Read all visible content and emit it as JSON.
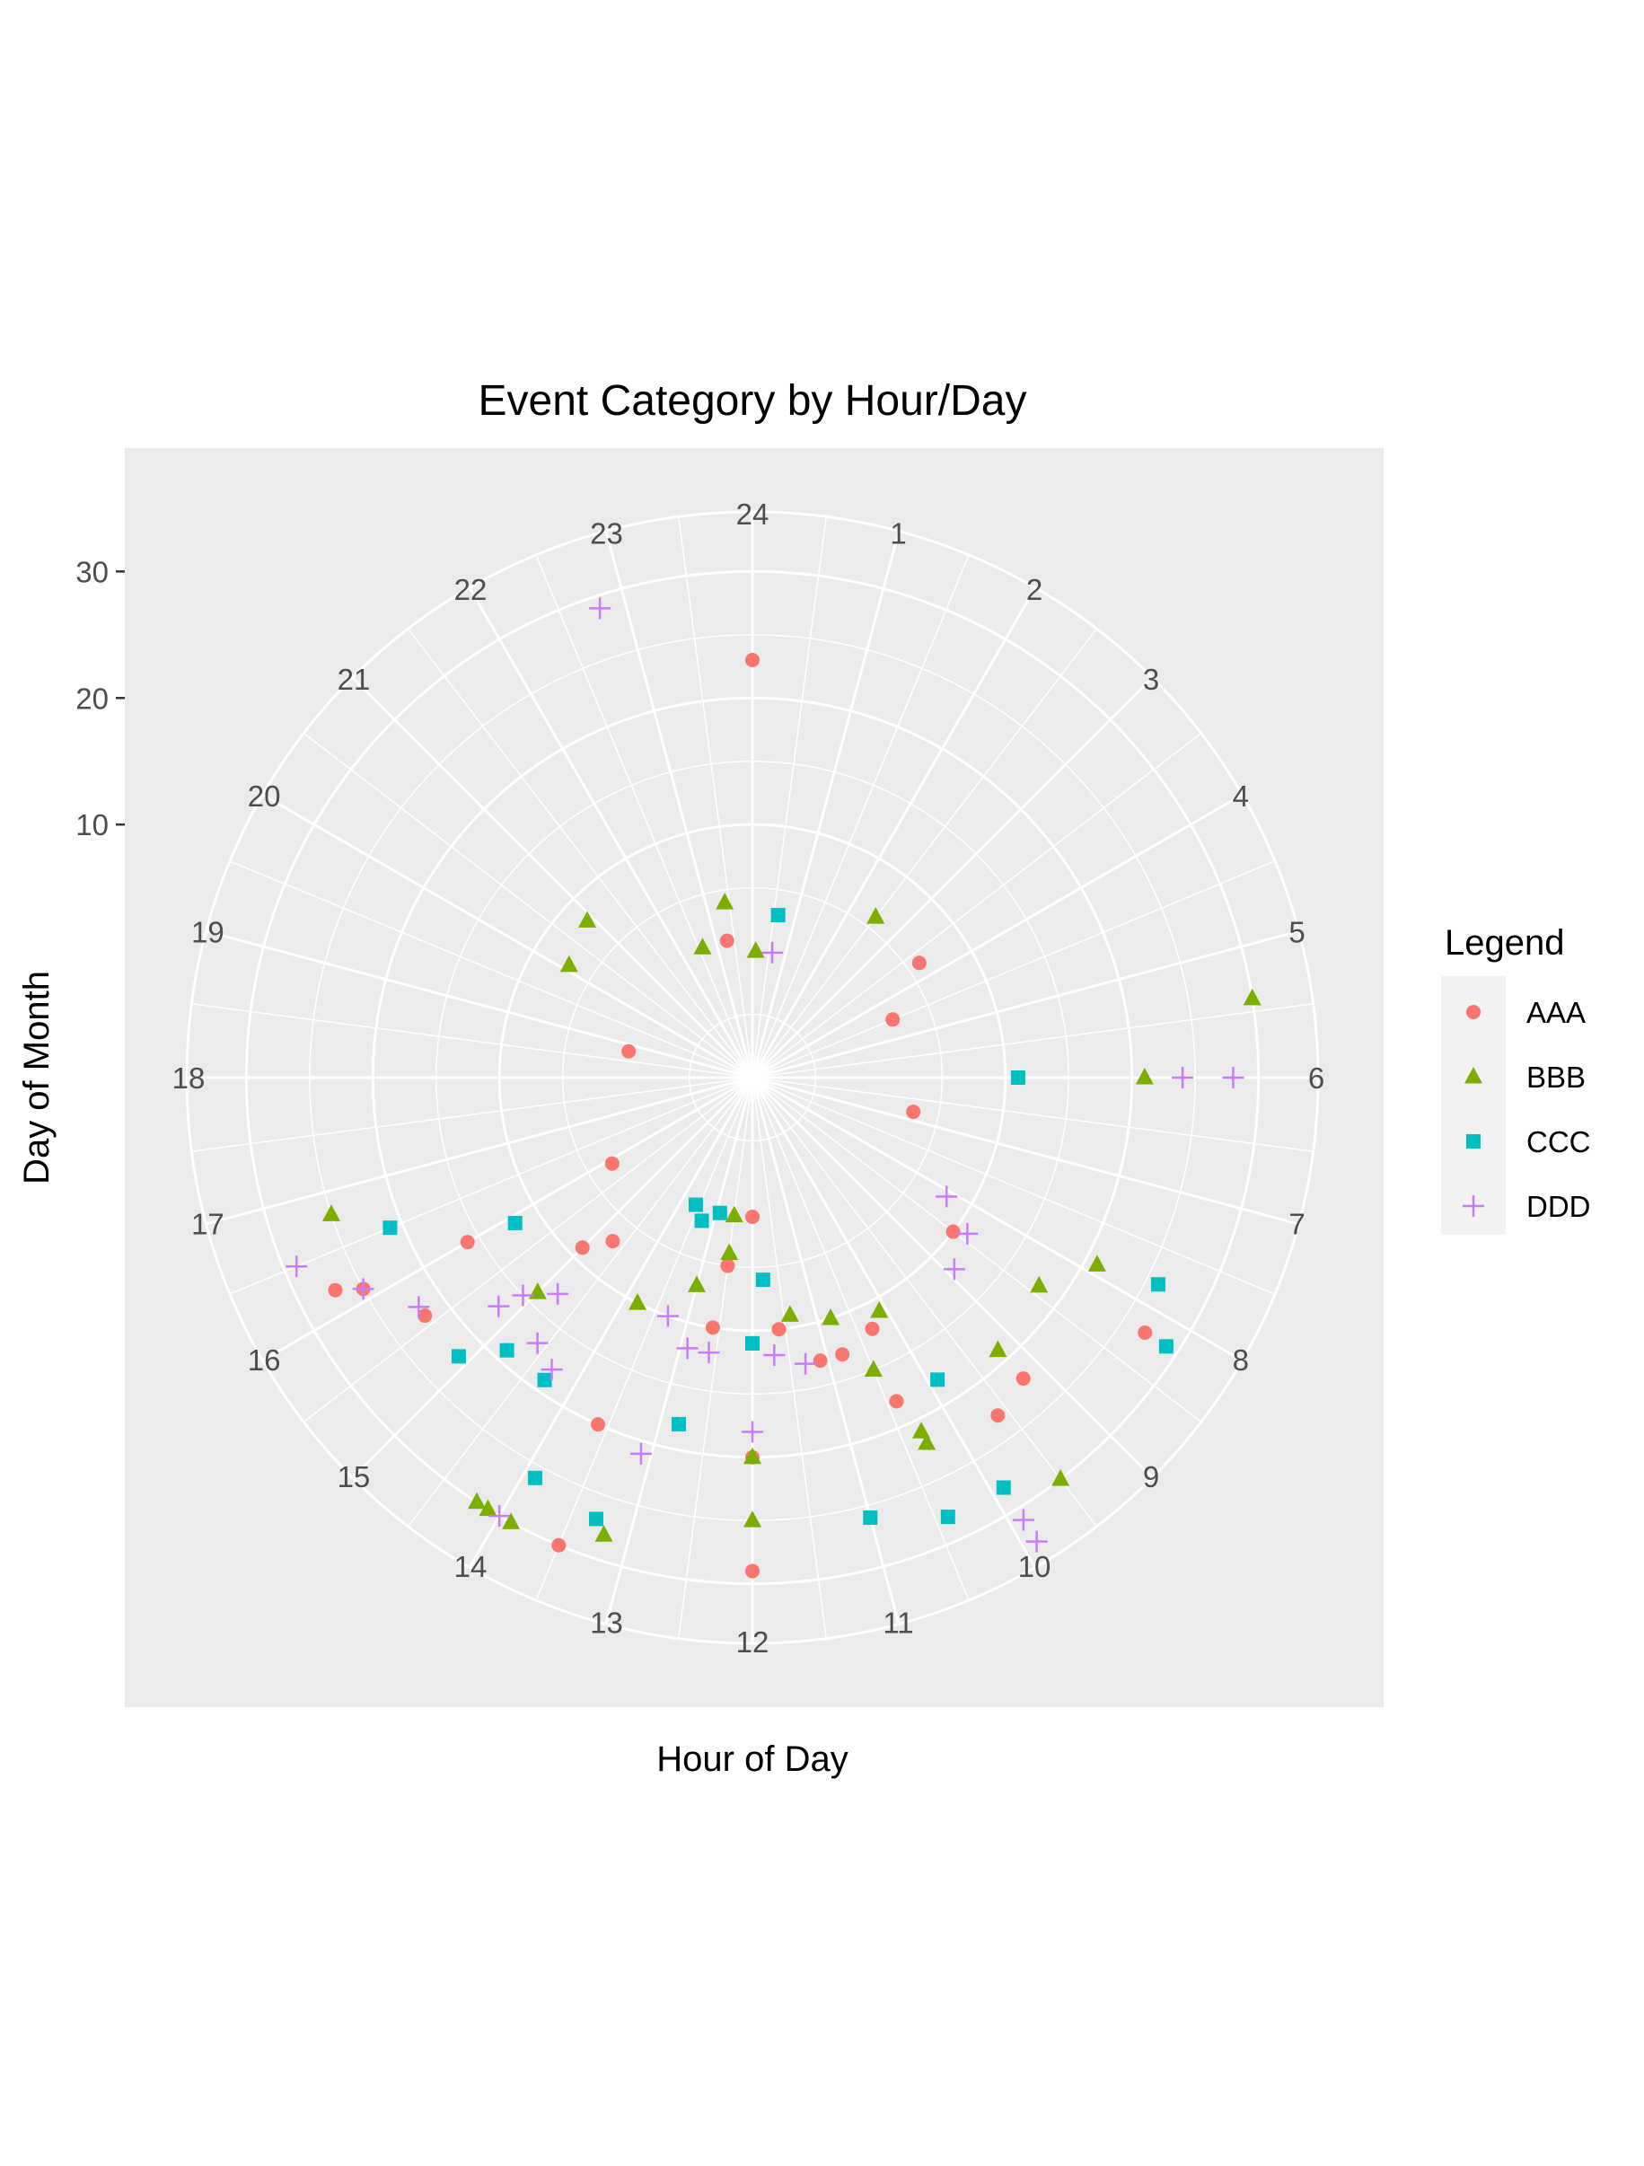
{
  "chart_data": {
    "type": "scatter",
    "coordinate_system": "polar",
    "title": "Event Category by Hour/Day",
    "xlabel": "Hour of Day",
    "ylabel": "Day of Month",
    "x_ticks": [
      "24",
      "1",
      "2",
      "3",
      "4",
      "5",
      "6",
      "7",
      "8",
      "9",
      "10",
      "11",
      "12",
      "13",
      "14",
      "15",
      "16",
      "17",
      "18",
      "19",
      "20",
      "21",
      "22",
      "23"
    ],
    "y_ticks": [
      "10",
      "20",
      "30"
    ],
    "xlim": [
      0,
      24
    ],
    "ylim": [
      -10,
      34
    ],
    "grid": true,
    "panel_background": "#ebebeb",
    "legend": {
      "title": "Legend",
      "placement": "right"
    },
    "series": [
      {
        "name": "AAA",
        "shape": "circle",
        "color": "#F8766D",
        "points": [
          [
            0,
            23
          ],
          [
            3.7,
            6
          ],
          [
            6.8,
            3
          ],
          [
            12,
            1
          ],
          [
            12,
            29
          ],
          [
            4.5,
            2
          ],
          [
            18.8,
            0
          ],
          [
            23.3,
            1
          ],
          [
            15.9,
            3
          ],
          [
            14.7,
            7
          ],
          [
            16.0,
            16
          ],
          [
            16.1,
            25
          ],
          [
            16.2,
            27
          ],
          [
            15.6,
            22
          ],
          [
            13.6,
            20
          ],
          [
            13.5,
            30
          ],
          [
            12.6,
            10
          ],
          [
            11.6,
            10
          ],
          [
            11.1,
            13
          ],
          [
            10.8,
            13
          ],
          [
            10.3,
            12
          ],
          [
            10.4,
            18
          ],
          [
            9.6,
            23
          ],
          [
            9.2,
            22
          ],
          [
            8.2,
            27
          ],
          [
            12.0,
            20
          ],
          [
            12.0,
            11
          ],
          [
            12.5,
            5
          ],
          [
            15.0,
            9
          ],
          [
            8.5,
            10
          ]
        ]
      },
      {
        "name": "BBB",
        "shape": "triangle",
        "color": "#7CAE00",
        "points": [
          [
            5.4,
            30
          ],
          [
            6,
            21
          ],
          [
            2.5,
            6
          ],
          [
            20.1,
            7
          ],
          [
            20.9,
            8
          ],
          [
            22.6,
            1
          ],
          [
            23.4,
            4
          ],
          [
            0.1,
            0
          ],
          [
            12.5,
            4
          ],
          [
            13.0,
            7
          ],
          [
            13.8,
            10
          ],
          [
            11.4,
            9
          ],
          [
            10.8,
            10
          ],
          [
            10.5,
            15
          ],
          [
            9.2,
            19
          ],
          [
            8.4,
            18
          ],
          [
            7.9,
            21
          ],
          [
            10.3,
            21
          ],
          [
            10.3,
            22
          ],
          [
            9.5,
            30
          ],
          [
            12.0,
            20
          ],
          [
            12.0,
            25
          ],
          [
            13.2,
            28
          ],
          [
            13.9,
            30
          ],
          [
            14.1,
            30
          ],
          [
            14.2,
            30
          ],
          [
            16.8,
            25
          ],
          [
            15.0,
            14
          ],
          [
            10.1,
            11
          ],
          [
            12.5,
            1
          ]
        ]
      },
      {
        "name": "CCC",
        "shape": "square",
        "color": "#00BFC4",
        "points": [
          [
            0.6,
            3
          ],
          [
            6,
            11
          ],
          [
            7.8,
            26
          ],
          [
            8.2,
            29
          ],
          [
            13.3,
            2
          ],
          [
            12.9,
            1
          ],
          [
            13.6,
            1
          ],
          [
            11.8,
            6
          ],
          [
            12.0,
            11
          ],
          [
            12.8,
            18
          ],
          [
            14.3,
            19
          ],
          [
            15.1,
            22
          ],
          [
            15.9,
            12
          ],
          [
            16.5,
            21
          ],
          [
            13.9,
            26
          ],
          [
            11.0,
            26
          ],
          [
            10.4,
            28
          ],
          [
            9.9,
            28
          ],
          [
            9.9,
            18
          ],
          [
            13.3,
            27
          ],
          [
            14.8,
            19
          ],
          [
            12.0,
            11
          ]
        ]
      },
      {
        "name": "DDD",
        "shape": "plus",
        "color": "#C77CFF",
        "points": [
          [
            22.8,
            29
          ],
          [
            6,
            24
          ],
          [
            6,
            28
          ],
          [
            9.9,
            31
          ],
          [
            9.9,
            33
          ],
          [
            11.7,
            12
          ],
          [
            11.3,
            13
          ],
          [
            12.0,
            18
          ],
          [
            14.0,
            30
          ],
          [
            15.7,
            22
          ],
          [
            16.5,
            29
          ],
          [
            16.1,
            25
          ],
          [
            14.8,
            13
          ],
          [
            15.1,
            15
          ],
          [
            14.6,
            17
          ],
          [
            14.3,
            18
          ],
          [
            15.2,
            17
          ],
          [
            12.9,
            12
          ],
          [
            13.1,
            21
          ],
          [
            13.3,
            10
          ],
          [
            12.6,
            12
          ],
          [
            8.9,
            12
          ],
          [
            8.1,
            8
          ],
          [
            0.6,
            0
          ],
          [
            8.4,
            11
          ]
        ]
      }
    ]
  }
}
